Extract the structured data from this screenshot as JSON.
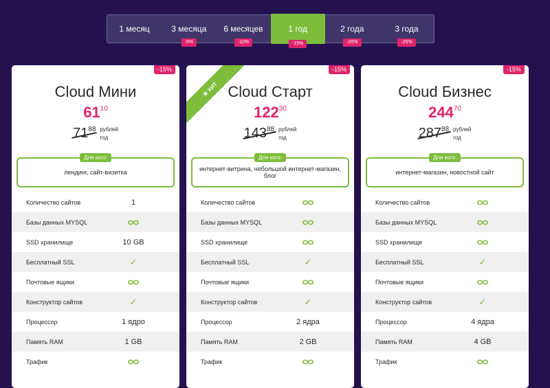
{
  "periods": [
    {
      "label": "1 месяц",
      "badge": "",
      "active": false
    },
    {
      "label": "3 месяца",
      "badge": "-5%",
      "active": false
    },
    {
      "label": "6 месяцев",
      "badge": "-10%",
      "active": false
    },
    {
      "label": "1 год",
      "badge": "-15%",
      "active": true
    },
    {
      "label": "2 года",
      "badge": "-20%",
      "active": false
    },
    {
      "label": "3 года",
      "badge": "-25%",
      "active": false
    }
  ],
  "unit_line1": "рублей",
  "unit_line2": "год",
  "who_label": "Для кого:",
  "ribbon_label": "ХИТ",
  "colors": {
    "accent": "#7dbd3b",
    "pink": "#e0246c",
    "background": "#24124f"
  },
  "feature_names": [
    "Количество сайтов",
    "Базы данных MYSQL",
    "SSD хранилище",
    "Бесплатный SSL",
    "Почтовые ящики",
    "Конструктор сайтов",
    "Процессор",
    "Память RAM",
    "Трафик"
  ],
  "plans": [
    {
      "discount": "-15%",
      "title": "Cloud Мини",
      "price_int": "61",
      "price_frac": "10",
      "old_int": "71",
      "old_frac": "88",
      "who": "лендинг, сайт-визитка",
      "values": [
        "1",
        "∞",
        "10 GB",
        "✓",
        "∞",
        "✓",
        "1 ядро",
        "1 GB",
        "∞"
      ]
    },
    {
      "discount": "-15%",
      "title": "Cloud Старт",
      "price_int": "122",
      "price_frac": "30",
      "old_int": "143",
      "old_frac": "88",
      "who": "интернет-витрина, небольшой интернет-магазин, блог",
      "values": [
        "∞",
        "∞",
        "∞",
        "✓",
        "∞",
        "✓",
        "2 ядра",
        "2 GB",
        "∞"
      ]
    },
    {
      "discount": "-15%",
      "title": "Cloud Бизнес",
      "price_int": "244",
      "price_frac": "70",
      "old_int": "287",
      "old_frac": "88",
      "who": "интернет-магазин, новостной сайт",
      "values": [
        "∞",
        "∞",
        "∞",
        "✓",
        "∞",
        "✓",
        "4 ядра",
        "4 GB",
        "∞"
      ]
    }
  ]
}
